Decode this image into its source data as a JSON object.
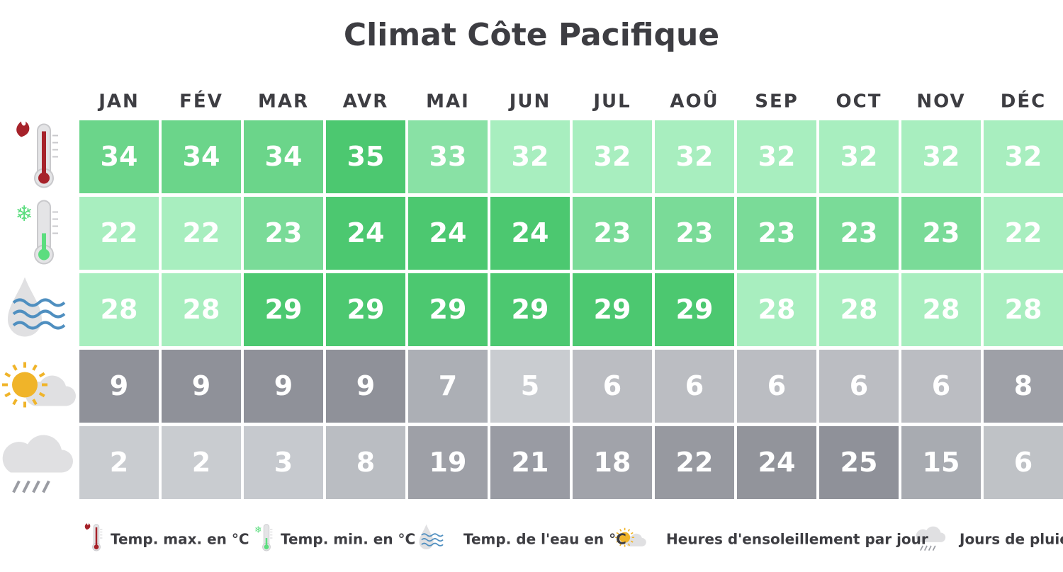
{
  "title": "Climat Côte Pacifique",
  "months": [
    "JAN",
    "FÉV",
    "MAR",
    "AVR",
    "MAI",
    "JUN",
    "JUL",
    "AOÛ",
    "SEP",
    "OCT",
    "NOV",
    "DÉC"
  ],
  "rows": [
    {
      "label": "Temp. max. en °C",
      "colors": [
        "#a8eebf",
        "#4cc870"
      ],
      "values": [
        34,
        34,
        34,
        35,
        33,
        32,
        32,
        32,
        32,
        32,
        32,
        32
      ]
    },
    {
      "label": "Temp. min. en °C",
      "colors": [
        "#a8eebf",
        "#4cc870"
      ],
      "values": [
        22,
        22,
        23,
        24,
        24,
        24,
        23,
        23,
        23,
        23,
        23,
        22
      ]
    },
    {
      "label": "Temp. de l'eau en °C",
      "colors": [
        "#a8eebf",
        "#4cc870"
      ],
      "values": [
        28,
        28,
        29,
        29,
        29,
        29,
        29,
        29,
        28,
        28,
        28,
        28
      ]
    },
    {
      "label": "Heures d'ensoleillement par jour",
      "colors": [
        "#c9ccd0",
        "#8f9199"
      ],
      "values": [
        9,
        9,
        9,
        9,
        7,
        5,
        6,
        6,
        6,
        6,
        6,
        8
      ]
    },
    {
      "label": "Jours de pluie",
      "colors": [
        "#c9ccd0",
        "#8f9199"
      ],
      "values": [
        2,
        2,
        3,
        8,
        19,
        21,
        18,
        22,
        24,
        25,
        15,
        6
      ]
    }
  ]
}
